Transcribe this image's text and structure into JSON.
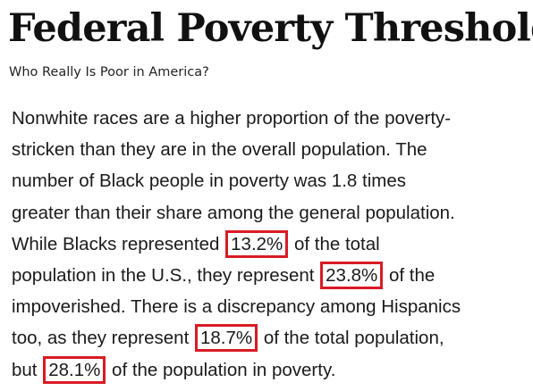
{
  "header": {
    "title": "Federal Poverty Threshold",
    "subtitle": "Who Really Is Poor in America?"
  },
  "article": {
    "l1": "Nonwhite races are a higher proportion of the poverty-",
    "l2": "stricken than they are in the overall population. The",
    "l3": "number of Black people in poverty was 1.8 times",
    "l4": "greater than their share among the general population.",
    "l5_pre": "While Blacks represented ",
    "black_pop_pct": "13.2%",
    "l5_post": " of the total",
    "l6_pre": "population in the U.S., they represent ",
    "black_poverty_pct": "23.8%",
    "l6_post": " of the",
    "l7": "impoverished. There is a discrepancy among Hispanics",
    "l8_pre": "too, as they represent ",
    "hispanic_pop_pct": "18.7%",
    "l8_post": " of the total population,",
    "l9_pre": "but ",
    "hispanic_poverty_pct": "28.1%",
    "l9_post": " of the population in poverty."
  },
  "colors": {
    "highlight_border": "#d81b24",
    "text": "#1a1a1a"
  }
}
